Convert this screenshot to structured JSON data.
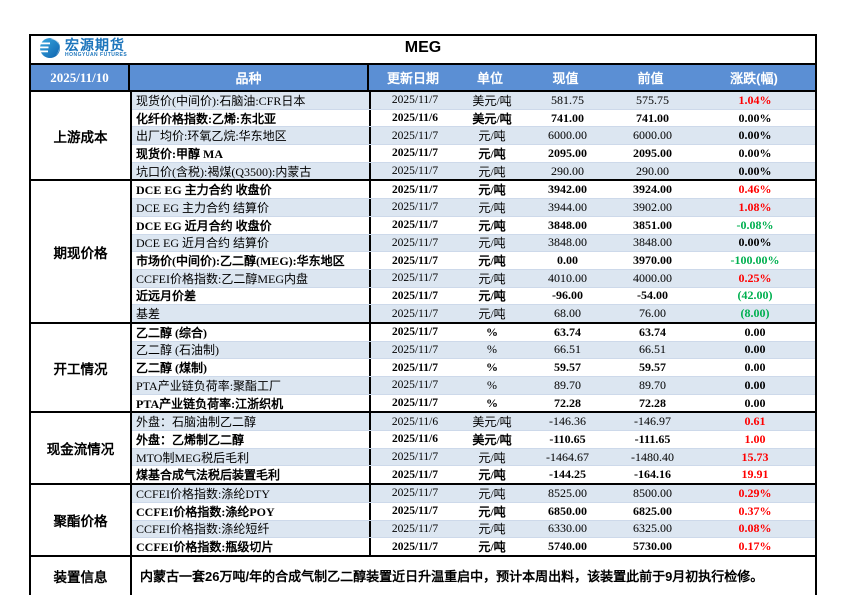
{
  "logo": {
    "name": "宏源期货",
    "subtitle": "HONGYUAN FUTURES"
  },
  "title": "MEG",
  "date": "2025/11/10",
  "columns": {
    "name": "品种",
    "update_date": "更新日期",
    "unit": "单位",
    "current": "现值",
    "previous": "前值",
    "change": "涨跌(幅)"
  },
  "colors": {
    "header_bg": "#5b8fd4",
    "row_alt_bg": "#dce6f1",
    "up": "#ff0000",
    "down": "#00b050",
    "flat": "#000000",
    "logo_blue": "#1c75bc"
  },
  "groups": [
    {
      "label": "上游成本",
      "rows": [
        {
          "name": "现货价(中间价):石脑油:CFR日本",
          "date": "2025/11/7",
          "unit": "美元/吨",
          "current": "581.75",
          "previous": "575.75",
          "change": "1.04%",
          "trend": "up"
        },
        {
          "name": "化纤价格指数:乙烯:东北亚",
          "date": "2025/11/6",
          "unit": "美元/吨",
          "current": "741.00",
          "previous": "741.00",
          "change": "0.00%",
          "trend": "flat"
        },
        {
          "name": "出厂均价:环氧乙烷:华东地区",
          "date": "2025/11/7",
          "unit": "元/吨",
          "current": "6000.00",
          "previous": "6000.00",
          "change": "0.00%",
          "trend": "flat"
        },
        {
          "name": "现货价:甲醇 MA",
          "date": "2025/11/7",
          "unit": "元/吨",
          "current": "2095.00",
          "previous": "2095.00",
          "change": "0.00%",
          "trend": "flat"
        },
        {
          "name": "坑口价(含税):褐煤(Q3500):内蒙古",
          "date": "2025/11/7",
          "unit": "元/吨",
          "current": "290.00",
          "previous": "290.00",
          "change": "0.00%",
          "trend": "flat"
        }
      ]
    },
    {
      "label": "期现价格",
      "rows": [
        {
          "name": "DCE EG 主力合约 收盘价",
          "date": "2025/11/7",
          "unit": "元/吨",
          "current": "3942.00",
          "previous": "3924.00",
          "change": "0.46%",
          "trend": "up"
        },
        {
          "name": "DCE EG 主力合约 结算价",
          "date": "2025/11/7",
          "unit": "元/吨",
          "current": "3944.00",
          "previous": "3902.00",
          "change": "1.08%",
          "trend": "up"
        },
        {
          "name": "DCE EG 近月合约 收盘价",
          "date": "2025/11/7",
          "unit": "元/吨",
          "current": "3848.00",
          "previous": "3851.00",
          "change": "-0.08%",
          "trend": "down"
        },
        {
          "name": "DCE EG 近月合约 结算价",
          "date": "2025/11/7",
          "unit": "元/吨",
          "current": "3848.00",
          "previous": "3848.00",
          "change": "0.00%",
          "trend": "flat"
        },
        {
          "name": "市场价(中间价):乙二醇(MEG):华东地区",
          "date": "2025/11/7",
          "unit": "元/吨",
          "current": "0.00",
          "previous": "3970.00",
          "change": "-100.00%",
          "trend": "down"
        },
        {
          "name": "CCFEI价格指数:乙二醇MEG内盘",
          "date": "2025/11/7",
          "unit": "元/吨",
          "current": "4010.00",
          "previous": "4000.00",
          "change": "0.25%",
          "trend": "up"
        },
        {
          "name": "近远月价差",
          "date": "2025/11/7",
          "unit": "元/吨",
          "current": "-96.00",
          "previous": "-54.00",
          "change": "(42.00)",
          "trend": "down"
        },
        {
          "name": "基差",
          "date": "2025/11/7",
          "unit": "元/吨",
          "current": "68.00",
          "previous": "76.00",
          "change": "(8.00)",
          "trend": "down"
        }
      ]
    },
    {
      "label": "开工情况",
      "rows": [
        {
          "name": "乙二醇 (综合)",
          "date": "2025/11/7",
          "unit": "%",
          "current": "63.74",
          "previous": "63.74",
          "change": "0.00",
          "trend": "flat"
        },
        {
          "name": "乙二醇 (石油制)",
          "date": "2025/11/7",
          "unit": "%",
          "current": "66.51",
          "previous": "66.51",
          "change": "0.00",
          "trend": "flat"
        },
        {
          "name": "乙二醇 (煤制)",
          "date": "2025/11/7",
          "unit": "%",
          "current": "59.57",
          "previous": "59.57",
          "change": "0.00",
          "trend": "flat"
        },
        {
          "name": "PTA产业链负荷率:聚酯工厂",
          "date": "2025/11/7",
          "unit": "%",
          "current": "89.70",
          "previous": "89.70",
          "change": "0.00",
          "trend": "flat"
        },
        {
          "name": "PTA产业链负荷率:江浙织机",
          "date": "2025/11/7",
          "unit": "%",
          "current": "72.28",
          "previous": "72.28",
          "change": "0.00",
          "trend": "flat"
        }
      ]
    },
    {
      "label": "现金流情况",
      "rows": [
        {
          "name": "外盘：石脑油制乙二醇",
          "date": "2025/11/6",
          "unit": "美元/吨",
          "current": "-146.36",
          "previous": "-146.97",
          "change": "0.61",
          "trend": "up"
        },
        {
          "name": "外盘：乙烯制乙二醇",
          "date": "2025/11/6",
          "unit": "美元/吨",
          "current": "-110.65",
          "previous": "-111.65",
          "change": "1.00",
          "trend": "up"
        },
        {
          "name": "MTO制MEG税后毛利",
          "date": "2025/11/7",
          "unit": "元/吨",
          "current": "-1464.67",
          "previous": "-1480.40",
          "change": "15.73",
          "trend": "up"
        },
        {
          "name": "煤基合成气法税后装置毛利",
          "date": "2025/11/7",
          "unit": "元/吨",
          "current": "-144.25",
          "previous": "-164.16",
          "change": "19.91",
          "trend": "up"
        }
      ]
    },
    {
      "label": "聚酯价格",
      "rows": [
        {
          "name": "CCFEI价格指数:涤纶DTY",
          "date": "2025/11/7",
          "unit": "元/吨",
          "current": "8525.00",
          "previous": "8500.00",
          "change": "0.29%",
          "trend": "up"
        },
        {
          "name": "CCFEI价格指数:涤纶POY",
          "date": "2025/11/7",
          "unit": "元/吨",
          "current": "6850.00",
          "previous": "6825.00",
          "change": "0.37%",
          "trend": "up"
        },
        {
          "name": "CCFEI价格指数:涤纶短纤",
          "date": "2025/11/7",
          "unit": "元/吨",
          "current": "6330.00",
          "previous": "6325.00",
          "change": "0.08%",
          "trend": "up"
        },
        {
          "name": "CCFEI价格指数:瓶级切片",
          "date": "2025/11/7",
          "unit": "元/吨",
          "current": "5740.00",
          "previous": "5730.00",
          "change": "0.17%",
          "trend": "up"
        }
      ]
    }
  ],
  "notes": {
    "label": "装置信息",
    "text": "内蒙古一套26万吨/年的合成气制乙二醇装置近日升温重启中，预计本周出料，该装置此前于9月初执行检修。"
  }
}
